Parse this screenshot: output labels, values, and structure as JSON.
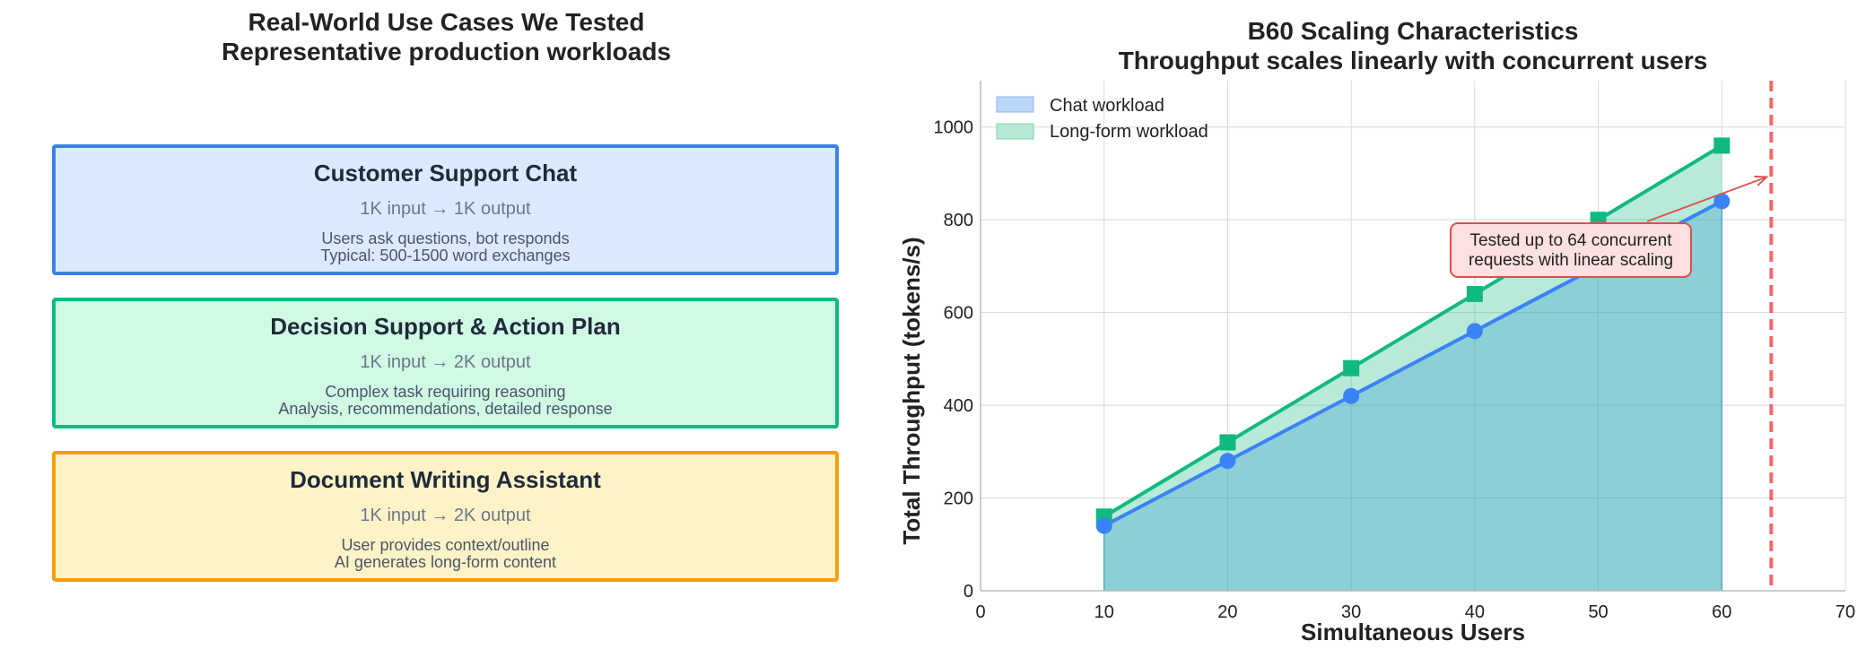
{
  "left_panel": {
    "title_line1": "Real-World Use Cases We Tested",
    "title_line2": "Representative production workloads",
    "cards": [
      {
        "title": "Customer Support Chat",
        "io": "1K input → 1K output",
        "desc1": "Users ask questions, bot responds",
        "desc2": "Typical: 500-1500 word exchanges",
        "border_color": "#3b82e6",
        "fill_color": "#dbeafe"
      },
      {
        "title": "Decision Support & Action Plan",
        "io": "1K input → 2K output",
        "desc1": "Complex task requiring reasoning",
        "desc2": "Analysis, recommendations, detailed response",
        "border_color": "#10b981",
        "fill_color": "#d1fae5"
      },
      {
        "title": "Document Writing Assistant",
        "io": "1K input → 2K output",
        "desc1": "User provides context/outline",
        "desc2": "AI generates long-form content",
        "border_color": "#f59e0b",
        "fill_color": "#fef3c7"
      }
    ]
  },
  "chart_data": {
    "type": "area",
    "title": "B60 Scaling Characteristics",
    "subtitle": "Throughput scales linearly with concurrent users",
    "xlabel": "Simultaneous Users",
    "ylabel": "Total Throughput (tokens/s)",
    "xlim": [
      0,
      70
    ],
    "ylim": [
      0,
      1100
    ],
    "x_ticks": [
      0,
      10,
      20,
      30,
      40,
      50,
      60,
      70
    ],
    "y_ticks": [
      0,
      200,
      400,
      600,
      800,
      1000
    ],
    "grid": true,
    "legend_position": "top-left",
    "x": [
      10,
      20,
      30,
      40,
      50,
      60
    ],
    "series": [
      {
        "name": "Chat workload",
        "values": [
          140,
          280,
          420,
          560,
          700,
          840
        ],
        "color": "#3b82f6",
        "marker": "circle"
      },
      {
        "name": "Long-form workload",
        "values": [
          160,
          320,
          480,
          640,
          800,
          960
        ],
        "color": "#10b981",
        "marker": "square"
      }
    ],
    "reference_line": {
      "x": 64,
      "color": "#ef4444",
      "style": "dashed"
    },
    "annotation": {
      "line1": "Tested up to 64 concurrent",
      "line2": "requests with linear scaling",
      "target": [
        64,
        900
      ]
    }
  }
}
